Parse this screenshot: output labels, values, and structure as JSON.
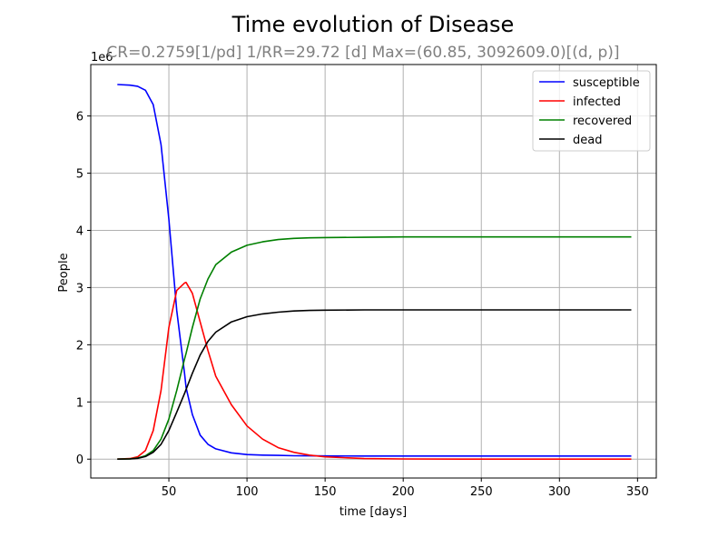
{
  "chart_data": {
    "type": "line",
    "title": "Time evolution of Disease",
    "subtitle": "CR=0.2759[1/pd] 1/RR=29.72 [d] Max=(60.85, 3092609.0)[(d, p)]",
    "xlabel": "time [days]",
    "ylabel": "People",
    "y_offset_label": "1e6",
    "xlim": [
      0,
      362
    ],
    "ylim": [
      -0.33,
      6.9
    ],
    "xticks": [
      50,
      100,
      150,
      200,
      250,
      300,
      350
    ],
    "yticks": [
      0,
      1,
      2,
      3,
      4,
      5,
      6
    ],
    "grid": true,
    "legend_position": "top-right",
    "x": [
      17,
      25,
      30,
      35,
      40,
      45,
      50,
      55,
      60,
      61,
      65,
      70,
      75,
      80,
      90,
      100,
      110,
      120,
      130,
      140,
      150,
      175,
      200,
      250,
      300,
      346
    ],
    "series": [
      {
        "name": "susceptible",
        "color": "#0000ff",
        "values": [
          6.55,
          6.54,
          6.52,
          6.45,
          6.2,
          5.5,
          4.2,
          2.6,
          1.5,
          1.25,
          0.78,
          0.42,
          0.26,
          0.18,
          0.11,
          0.08,
          0.07,
          0.065,
          0.06,
          0.058,
          0.056,
          0.055,
          0.055,
          0.055,
          0.055,
          0.055
        ]
      },
      {
        "name": "infected",
        "color": "#ff0000",
        "values": [
          0.0,
          0.01,
          0.04,
          0.15,
          0.5,
          1.2,
          2.3,
          2.95,
          3.08,
          3.09,
          2.9,
          2.4,
          1.9,
          1.45,
          0.95,
          0.58,
          0.35,
          0.2,
          0.12,
          0.07,
          0.04,
          0.01,
          0.003,
          0.0,
          0.0,
          0.0
        ]
      },
      {
        "name": "recovered",
        "color": "#008000",
        "values": [
          0.0,
          0.005,
          0.02,
          0.06,
          0.15,
          0.35,
          0.7,
          1.2,
          1.75,
          1.85,
          2.3,
          2.8,
          3.15,
          3.4,
          3.62,
          3.74,
          3.8,
          3.84,
          3.86,
          3.87,
          3.875,
          3.88,
          3.885,
          3.885,
          3.885,
          3.885
        ]
      },
      {
        "name": "dead",
        "color": "#000000",
        "values": [
          0.0,
          0.004,
          0.015,
          0.045,
          0.12,
          0.26,
          0.5,
          0.82,
          1.15,
          1.22,
          1.5,
          1.82,
          2.06,
          2.22,
          2.4,
          2.49,
          2.54,
          2.57,
          2.59,
          2.6,
          2.605,
          2.61,
          2.61,
          2.61,
          2.61,
          2.61
        ]
      }
    ]
  }
}
